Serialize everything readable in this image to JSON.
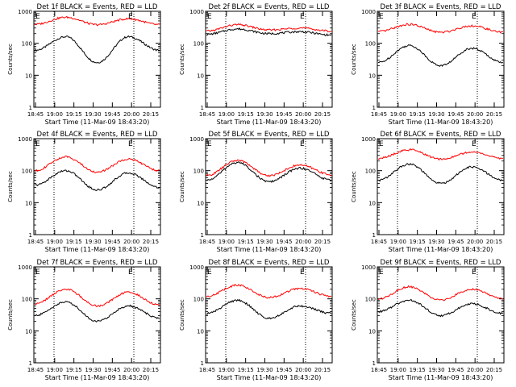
{
  "figure": {
    "ylabel": "Counts/sec",
    "xlabel": "Start Time (11-Mar-09 18:43:20)",
    "xticks": [
      "18:45",
      "19:00",
      "19:15",
      "19:30",
      "19:45",
      "20:00",
      "20:15"
    ],
    "yticks": [
      "1",
      "10",
      "100",
      "1000"
    ],
    "colors": {
      "events": "#000000",
      "lld": "#ff0000"
    }
  },
  "chart_data": [
    {
      "type": "line",
      "title": "Det 1f BLACK = Events, RED = LLD",
      "series": [
        {
          "name": "Events",
          "levels": [
            60,
            160,
            25,
            160,
            60
          ]
        },
        {
          "name": "LLD",
          "levels": [
            390,
            650,
            380,
            580,
            380
          ]
        }
      ],
      "flags": [
        "E",
        "E"
      ],
      "ylim": [
        1,
        1000
      ]
    },
    {
      "type": "line",
      "title": "Det 2f BLACK = Events, RED = LLD",
      "series": [
        {
          "name": "Events",
          "levels": [
            190,
            280,
            200,
            230,
            180
          ]
        },
        {
          "name": "LLD",
          "levels": [
            240,
            380,
            260,
            300,
            240
          ]
        }
      ],
      "flags": [
        "E",
        "E"
      ],
      "ylim": [
        1,
        1000
      ]
    },
    {
      "type": "line",
      "title": "Det 3f BLACK = Events, RED = LLD",
      "series": [
        {
          "name": "Events",
          "levels": [
            25,
            85,
            20,
            70,
            25
          ]
        },
        {
          "name": "LLD",
          "levels": [
            230,
            390,
            220,
            350,
            220
          ]
        }
      ],
      "flags": [
        "E",
        "E"
      ],
      "ylim": [
        1,
        1000
      ]
    },
    {
      "type": "line",
      "title": "Det 4f BLACK = Events, RED = LLD",
      "series": [
        {
          "name": "Events",
          "levels": [
            35,
            100,
            25,
            85,
            30
          ]
        },
        {
          "name": "LLD",
          "levels": [
            100,
            270,
            90,
            230,
            100
          ]
        }
      ],
      "flags": [
        "E",
        "E"
      ],
      "ylim": [
        1,
        1000
      ]
    },
    {
      "type": "line",
      "title": "Det 5f BLACK = Events, RED = LLD",
      "series": [
        {
          "name": "Events",
          "levels": [
            50,
            180,
            45,
            120,
            50
          ]
        },
        {
          "name": "LLD",
          "levels": [
            70,
            210,
            70,
            150,
            75
          ]
        }
      ],
      "flags": [
        "E",
        "E"
      ],
      "ylim": [
        1,
        1000
      ]
    },
    {
      "type": "line",
      "title": "Det 6f BLACK = Events, RED = LLD",
      "series": [
        {
          "name": "Events",
          "levels": [
            50,
            160,
            40,
            130,
            50
          ]
        },
        {
          "name": "LLD",
          "levels": [
            240,
            450,
            230,
            380,
            240
          ]
        }
      ],
      "flags": [
        "E",
        "E"
      ],
      "ylim": [
        1,
        1000
      ]
    },
    {
      "type": "line",
      "title": "Det 7f BLACK = Events, RED = LLD",
      "series": [
        {
          "name": "Events",
          "levels": [
            30,
            80,
            20,
            60,
            25
          ]
        },
        {
          "name": "LLD",
          "levels": [
            70,
            200,
            60,
            160,
            65
          ]
        }
      ],
      "flags": [
        "E",
        "E"
      ],
      "ylim": [
        1,
        1000
      ]
    },
    {
      "type": "line",
      "title": "Det 8f BLACK = Events, RED = LLD",
      "series": [
        {
          "name": "Events",
          "levels": [
            35,
            90,
            25,
            60,
            35
          ]
        },
        {
          "name": "LLD",
          "levels": [
            120,
            270,
            110,
            210,
            120
          ]
        }
      ],
      "flags": [
        "E",
        "E"
      ],
      "ylim": [
        1,
        1000
      ]
    },
    {
      "type": "line",
      "title": "Det 9f BLACK = Events, RED = LLD",
      "series": [
        {
          "name": "Events",
          "levels": [
            40,
            90,
            30,
            70,
            35
          ]
        },
        {
          "name": "LLD",
          "levels": [
            100,
            240,
            90,
            200,
            100
          ]
        }
      ],
      "flags": [
        "E",
        "E"
      ],
      "ylim": [
        1,
        1000
      ]
    }
  ]
}
